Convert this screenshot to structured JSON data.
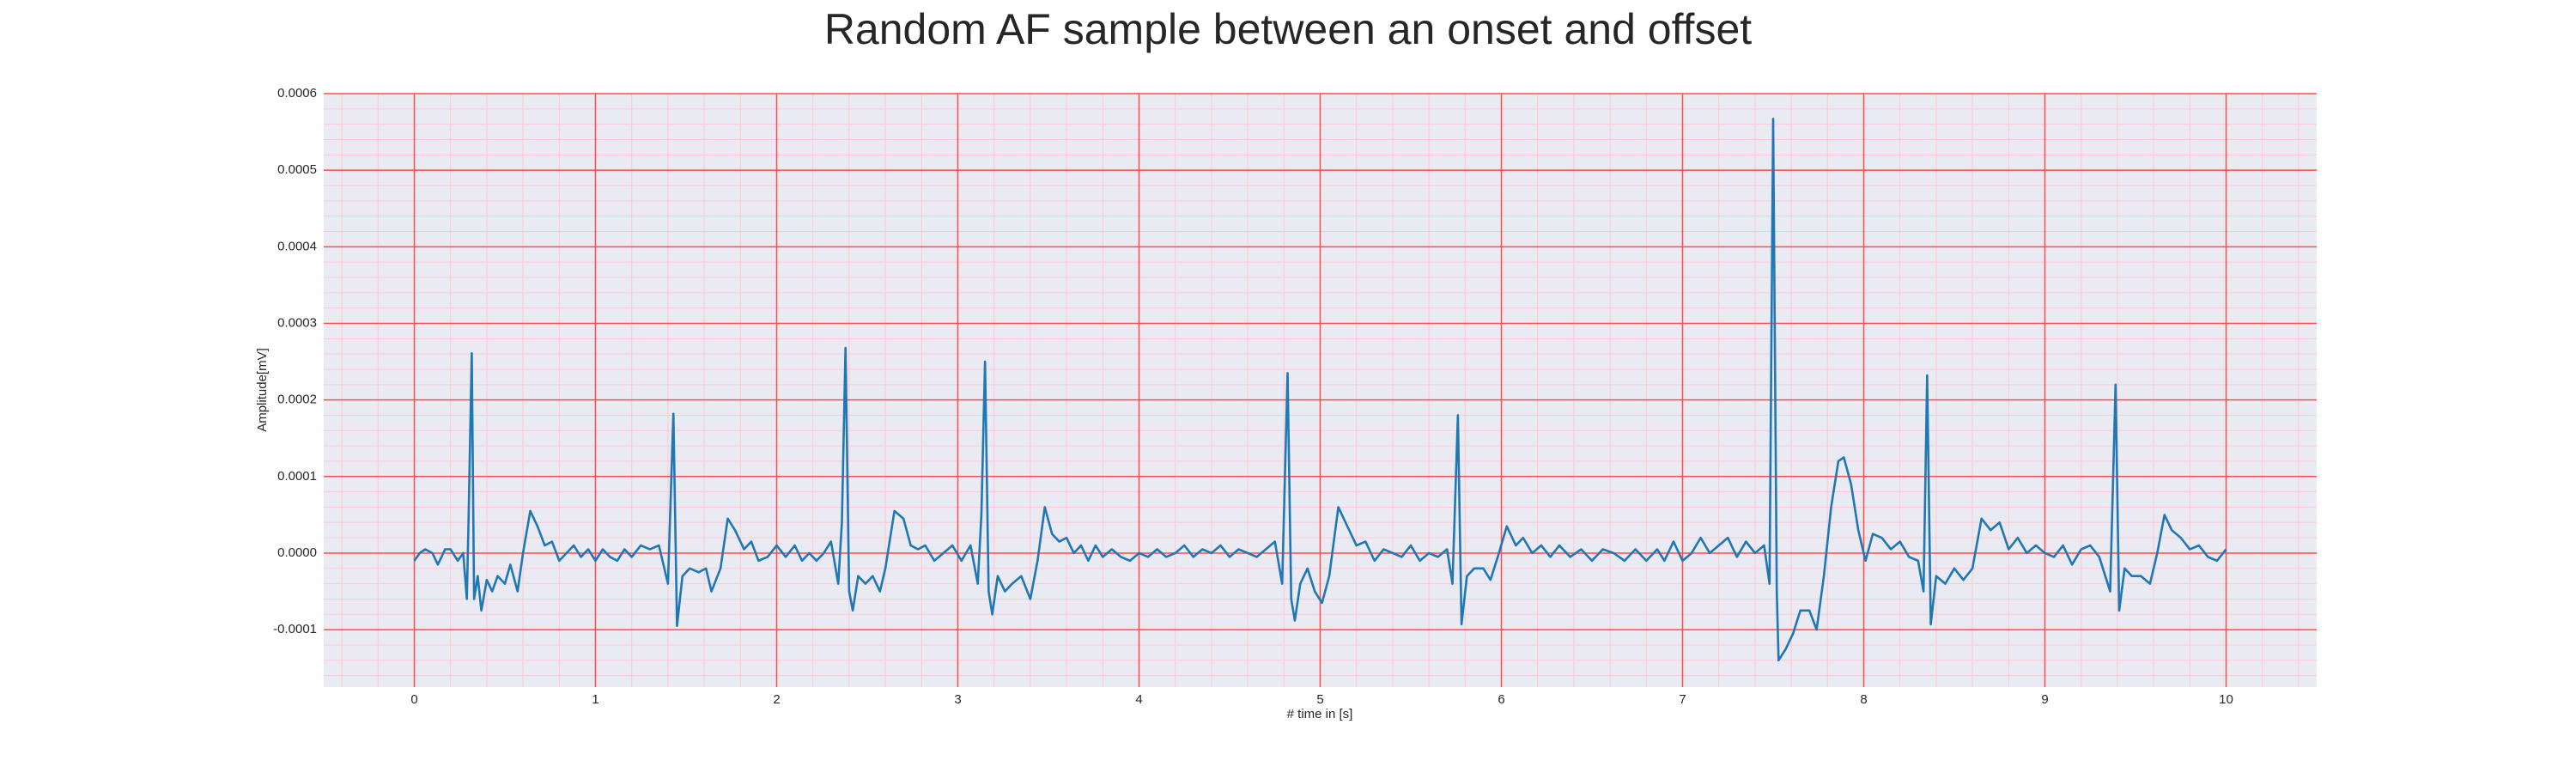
{
  "chart_data": {
    "type": "line",
    "title": "Random AF sample between an onset and offset",
    "xlabel": "# time in [s]",
    "ylabel": "Amplitude[mV]",
    "x": [
      0.0,
      0.03,
      0.06,
      0.1,
      0.13,
      0.17,
      0.2,
      0.24,
      0.27,
      0.29,
      0.3,
      0.317,
      0.33,
      0.35,
      0.37,
      0.4,
      0.43,
      0.46,
      0.5,
      0.53,
      0.57,
      0.6,
      0.64,
      0.68,
      0.72,
      0.76,
      0.8,
      0.84,
      0.88,
      0.92,
      0.96,
      1.0,
      1.04,
      1.08,
      1.12,
      1.16,
      1.2,
      1.25,
      1.3,
      1.35,
      1.4,
      1.43,
      1.45,
      1.48,
      1.52,
      1.57,
      1.61,
      1.64,
      1.69,
      1.73,
      1.77,
      1.82,
      1.86,
      1.9,
      1.95,
      2.0,
      2.05,
      2.1,
      2.14,
      2.18,
      2.22,
      2.26,
      2.3,
      2.34,
      2.36,
      2.38,
      2.4,
      2.42,
      2.45,
      2.49,
      2.53,
      2.57,
      2.6,
      2.65,
      2.7,
      2.74,
      2.78,
      2.82,
      2.87,
      2.92,
      2.97,
      3.02,
      3.07,
      3.11,
      3.13,
      3.15,
      3.17,
      3.19,
      3.22,
      3.26,
      3.3,
      3.35,
      3.4,
      3.44,
      3.48,
      3.52,
      3.56,
      3.6,
      3.64,
      3.68,
      3.72,
      3.76,
      3.8,
      3.85,
      3.9,
      3.95,
      4.0,
      4.05,
      4.1,
      4.15,
      4.2,
      4.25,
      4.3,
      4.35,
      4.4,
      4.45,
      4.5,
      4.55,
      4.6,
      4.65,
      4.7,
      4.75,
      4.79,
      4.82,
      4.84,
      4.86,
      4.89,
      4.93,
      4.97,
      5.01,
      5.05,
      5.1,
      5.15,
      5.2,
      5.25,
      5.3,
      5.35,
      5.4,
      5.45,
      5.5,
      5.55,
      5.6,
      5.65,
      5.7,
      5.73,
      5.76,
      5.78,
      5.81,
      5.85,
      5.9,
      5.94,
      5.98,
      6.03,
      6.08,
      6.12,
      6.17,
      6.22,
      6.27,
      6.32,
      6.38,
      6.44,
      6.5,
      6.56,
      6.62,
      6.68,
      6.74,
      6.8,
      6.86,
      6.9,
      6.95,
      7.0,
      7.05,
      7.1,
      7.15,
      7.2,
      7.25,
      7.3,
      7.35,
      7.4,
      7.45,
      7.48,
      7.5,
      7.52,
      7.53,
      7.57,
      7.61,
      7.65,
      7.7,
      7.74,
      7.78,
      7.82,
      7.86,
      7.89,
      7.93,
      7.97,
      8.01,
      8.05,
      8.1,
      8.15,
      8.2,
      8.25,
      8.3,
      8.33,
      8.35,
      8.37,
      8.4,
      8.45,
      8.5,
      8.55,
      8.6,
      8.65,
      8.7,
      8.75,
      8.8,
      8.85,
      8.9,
      8.95,
      9.0,
      9.05,
      9.1,
      9.15,
      9.2,
      9.25,
      9.3,
      9.36,
      9.39,
      9.41,
      9.44,
      9.48,
      9.53,
      9.58,
      9.62,
      9.66,
      9.7,
      9.75,
      9.8,
      9.85,
      9.9,
      9.95,
      10.0
    ],
    "series": [
      {
        "color": "#1f77b4",
        "values": [
          -1e-05,
          0,
          5e-06,
          0,
          -1.5e-05,
          5e-06,
          5e-06,
          -1e-05,
          0,
          -6e-05,
          5e-05,
          0.000261,
          -6e-05,
          -3e-05,
          -7.5e-05,
          -3.5e-05,
          -5e-05,
          -3e-05,
          -4e-05,
          -1.5e-05,
          -5e-05,
          0,
          5.5e-05,
          3.5e-05,
          1e-05,
          1.5e-05,
          -1e-05,
          0,
          1e-05,
          -5e-06,
          5e-06,
          -1e-05,
          5e-06,
          -5e-06,
          -1e-05,
          5e-06,
          -5e-06,
          1e-05,
          5e-06,
          1e-05,
          -4e-05,
          0.000182,
          -9.5e-05,
          -3e-05,
          -2e-05,
          -2.5e-05,
          -2e-05,
          -5e-05,
          -2e-05,
          4.5e-05,
          3e-05,
          5e-06,
          1.5e-05,
          -1e-05,
          -5e-06,
          1e-05,
          -5e-06,
          1e-05,
          -1e-05,
          0,
          -1e-05,
          0,
          1.5e-05,
          -4e-05,
          4e-05,
          0.000268,
          -5e-05,
          -7.5e-05,
          -3e-05,
          -4e-05,
          -3e-05,
          -5e-05,
          -2e-05,
          5.5e-05,
          4.5e-05,
          1e-05,
          5e-06,
          1e-05,
          -1e-05,
          0,
          1e-05,
          -1e-05,
          1e-05,
          -4e-05,
          5e-05,
          0.00025,
          -5e-05,
          -8e-05,
          -3e-05,
          -5e-05,
          -4e-05,
          -3e-05,
          -6e-05,
          -1e-05,
          6e-05,
          2.5e-05,
          1.5e-05,
          2e-05,
          0,
          1e-05,
          -1e-05,
          1e-05,
          -5e-06,
          5e-06,
          -5e-06,
          -1e-05,
          0,
          -5e-06,
          5e-06,
          -5e-06,
          0,
          1e-05,
          -5e-06,
          5e-06,
          0,
          1e-05,
          -5e-06,
          5e-06,
          0,
          -5e-06,
          5e-06,
          1.5e-05,
          -4e-05,
          0.000235,
          -6e-05,
          -8.8e-05,
          -4e-05,
          -2e-05,
          -5e-05,
          -6.5e-05,
          -3e-05,
          6e-05,
          3.5e-05,
          1e-05,
          1.5e-05,
          -1e-05,
          5e-06,
          0,
          -5e-06,
          1e-05,
          -1e-05,
          0,
          -5e-06,
          5e-06,
          -4e-05,
          0.00018,
          -9.3e-05,
          -3e-05,
          -2e-05,
          -2e-05,
          -3.5e-05,
          -5e-06,
          3.5e-05,
          1e-05,
          2e-05,
          0,
          1e-05,
          -5e-06,
          1e-05,
          -5e-06,
          5e-06,
          -1e-05,
          5e-06,
          0,
          -1e-05,
          5e-06,
          -1e-05,
          5e-06,
          -1e-05,
          1.5e-05,
          -1e-05,
          0,
          2e-05,
          0,
          1e-05,
          2e-05,
          -5e-06,
          1.5e-05,
          0,
          1e-05,
          -4e-05,
          0.000567,
          -5e-05,
          -0.00014,
          -0.000125,
          -0.000105,
          -7.5e-05,
          -7.5e-05,
          -0.0001,
          -3e-05,
          6e-05,
          0.00012,
          0.000125,
          9e-05,
          3e-05,
          -1e-05,
          2.5e-05,
          2e-05,
          5e-06,
          1.5e-05,
          -5e-06,
          -1e-05,
          -5e-05,
          0.000232,
          -9.3e-05,
          -3e-05,
          -4e-05,
          -2e-05,
          -3.5e-05,
          -2e-05,
          4.5e-05,
          3e-05,
          4e-05,
          5e-06,
          2e-05,
          0,
          1e-05,
          0,
          -5e-06,
          1e-05,
          -1.5e-05,
          5e-06,
          1e-05,
          -5e-06,
          -5e-05,
          0.00022,
          -7.5e-05,
          -2e-05,
          -3e-05,
          -3e-05,
          -4e-05,
          0,
          5e-05,
          3e-05,
          2e-05,
          5e-06,
          1e-05,
          -5e-06,
          -1e-05,
          5e-06
        ]
      }
    ],
    "xlim": [
      -0.5,
      10.5
    ],
    "ylim": [
      -0.000175,
      0.0006
    ],
    "xticks": [
      0,
      1,
      2,
      3,
      4,
      5,
      6,
      7,
      8,
      9,
      10
    ],
    "yticks": [
      -0.0001,
      {
        "value": 0,
        "label": "0.0000"
      },
      0.0001,
      0.0002,
      0.0003,
      0.0004,
      0.0005,
      0.0006
    ],
    "grid": true,
    "grid_color": "#ff4d4d",
    "minor_grid_color": "#ffc8d2",
    "minor_divisions": 5,
    "background": "#eaeaf2"
  }
}
